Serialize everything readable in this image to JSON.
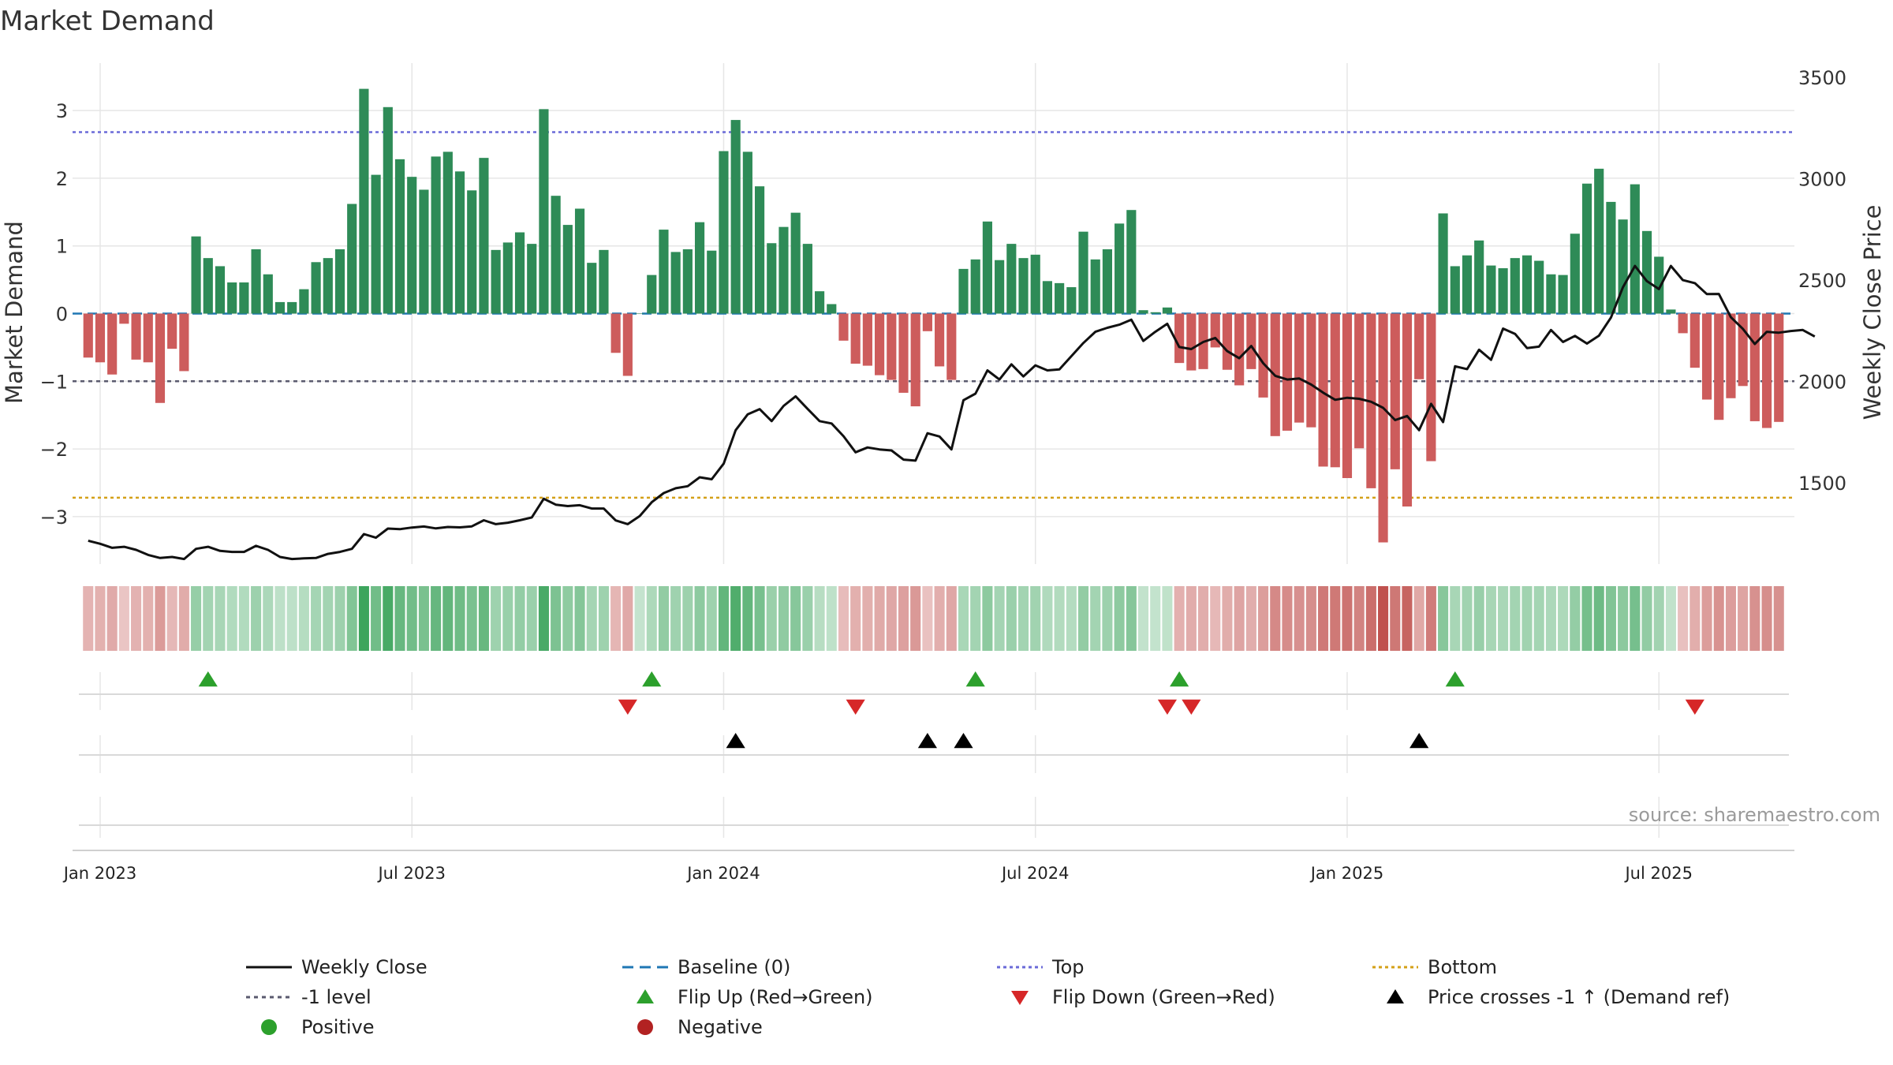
{
  "chart_data": {
    "type": "bar",
    "title": "Market Demand",
    "ylabel_left": "Market Demand",
    "ylabel_right": "Weekly Close Price",
    "source": "source: sharemaestro.com",
    "left_axis": {
      "ylim": [
        -3.7,
        3.7
      ],
      "ticks": [
        -3,
        -2,
        -1,
        0,
        1,
        2,
        3
      ],
      "tick_labels": [
        "−3",
        "−2",
        "−1",
        "0",
        "1",
        "2",
        "3"
      ]
    },
    "right_axis": {
      "ylim": [
        1100,
        3570
      ],
      "ticks": [
        1500,
        2000,
        2500,
        3000,
        3500
      ],
      "tick_labels": [
        "1500",
        "2000",
        "2500",
        "3000",
        "3500"
      ]
    },
    "reference_lines": {
      "top": 2.68,
      "bottom": -2.72,
      "minus_one": -1,
      "baseline": 0
    },
    "x_ticks": [
      {
        "week": 1,
        "label": "Jan 2023"
      },
      {
        "week": 27,
        "label": "Jul 2023"
      },
      {
        "week": 53,
        "label": "Jan 2024"
      },
      {
        "week": 79,
        "label": "Jul 2024"
      },
      {
        "week": 105,
        "label": "Jan 2025"
      },
      {
        "week": 131,
        "label": "Jul 2025"
      }
    ],
    "x_range": [
      -1.3,
      142.3
    ],
    "demand": [
      -0.65,
      -0.72,
      -0.9,
      -0.15,
      -0.68,
      -0.72,
      -1.32,
      -0.52,
      -0.85,
      1.14,
      0.82,
      0.7,
      0.46,
      0.46,
      0.95,
      0.58,
      0.17,
      0.17,
      0.36,
      0.76,
      0.82,
      0.95,
      1.62,
      3.32,
      2.05,
      3.05,
      2.28,
      2.02,
      1.83,
      2.32,
      2.39,
      2.1,
      1.82,
      2.3,
      0.94,
      1.05,
      1.2,
      1.03,
      3.02,
      1.74,
      1.31,
      1.55,
      0.75,
      0.94,
      -0.58,
      -0.92,
      0,
      0.57,
      1.24,
      0.91,
      0.95,
      1.35,
      0.93,
      2.4,
      2.86,
      2.39,
      1.88,
      1.04,
      1.28,
      1.49,
      1.03,
      0.33,
      0.14,
      -0.4,
      -0.74,
      -0.77,
      -0.91,
      -0.98,
      -1.17,
      -1.37,
      -0.26,
      -0.78,
      -0.98,
      0.66,
      0.8,
      1.36,
      0.79,
      1.03,
      0.82,
      0.87,
      0.48,
      0.45,
      0.39,
      1.21,
      0.8,
      0.95,
      1.33,
      1.53,
      0.05,
      0.02,
      0.09,
      -0.73,
      -0.84,
      -0.82,
      -0.5,
      -0.83,
      -1.06,
      -0.82,
      -1.24,
      -1.81,
      -1.73,
      -1.61,
      -1.68,
      -2.26,
      -2.27,
      -2.43,
      -1.99,
      -2.58,
      -3.38,
      -2.3,
      -2.85,
      -0.97,
      -2.18,
      1.48,
      0.7,
      0.86,
      1.08,
      0.71,
      0.67,
      0.82,
      0.86,
      0.78,
      0.58,
      0.57,
      1.18,
      1.92,
      2.14,
      1.65,
      1.39,
      1.91,
      1.22,
      0.84,
      0.06,
      -0.29,
      -0.8,
      -1.27,
      -1.57,
      -1.25,
      -1.07,
      -1.59,
      -1.69,
      -1.6
    ],
    "price": [
      1215,
      1200,
      1180,
      1185,
      1170,
      1145,
      1130,
      1135,
      1125,
      1175,
      1185,
      1165,
      1160,
      1160,
      1190,
      1170,
      1135,
      1125,
      1128,
      1130,
      1150,
      1160,
      1175,
      1248,
      1230,
      1275,
      1272,
      1280,
      1285,
      1276,
      1283,
      1281,
      1286,
      1316,
      1297,
      1304,
      1316,
      1330,
      1422,
      1393,
      1386,
      1390,
      1374,
      1374,
      1315,
      1297,
      1337,
      1405,
      1450,
      1474,
      1484,
      1528,
      1518,
      1595,
      1760,
      1838,
      1864,
      1805,
      1880,
      1927,
      1865,
      1805,
      1793,
      1730,
      1651,
      1675,
      1665,
      1660,
      1615,
      1610,
      1745,
      1729,
      1665,
      1908,
      1940,
      2055,
      2010,
      2085,
      2025,
      2080,
      2055,
      2060,
      2125,
      2190,
      2245,
      2265,
      2280,
      2305,
      2200,
      2245,
      2285,
      2170,
      2160,
      2195,
      2215,
      2150,
      2115,
      2175,
      2090,
      2028,
      2010,
      2015,
      1985,
      1945,
      1910,
      1920,
      1915,
      1900,
      1870,
      1810,
      1830,
      1760,
      1890,
      1800,
      2075,
      2061,
      2157,
      2107,
      2261,
      2235,
      2165,
      2172,
      2254,
      2195,
      2225,
      2187,
      2226,
      2315,
      2465,
      2570,
      2495,
      2456,
      2570,
      2500,
      2485,
      2431,
      2432,
      2317,
      2260,
      2185,
      2245,
      2241,
      2249,
      2254,
      2222
    ],
    "flip_up_weeks": [
      10,
      47,
      74,
      91,
      114
    ],
    "flip_down_weeks": [
      45,
      64,
      90,
      92,
      134
    ],
    "price_cross_weeks": [
      54,
      70,
      73,
      111
    ],
    "legend": [
      {
        "key": "weekly_close",
        "label": "Weekly Close"
      },
      {
        "key": "baseline",
        "label": "Baseline (0)"
      },
      {
        "key": "top",
        "label": "Top"
      },
      {
        "key": "bottom",
        "label": "Bottom"
      },
      {
        "key": "minus_one",
        "label": "-1 level"
      },
      {
        "key": "flip_up",
        "label": "Flip Up (Red→Green)"
      },
      {
        "key": "flip_down",
        "label": "Flip Down (Green→Red)"
      },
      {
        "key": "price_cross",
        "label": "Price crosses -1 ↑ (Demand ref)"
      },
      {
        "key": "positive",
        "label": "Positive"
      },
      {
        "key": "negative",
        "label": "Negative"
      }
    ],
    "colors": {
      "positive_bar": "#2e8b57",
      "negative_bar": "#cd5c5c",
      "price_line": "#111111",
      "baseline": "#1f77b4",
      "top_line": "#6a6ad8",
      "bottom_line": "#d4a017",
      "minus_one_line": "#5a5a6e",
      "flip_up": "#2ca02c",
      "flip_down": "#d62728",
      "price_cross": "#000000",
      "positive_dot": "#2ca02c",
      "negative_dot": "#b22222",
      "grid": "#e6e6e6"
    }
  }
}
